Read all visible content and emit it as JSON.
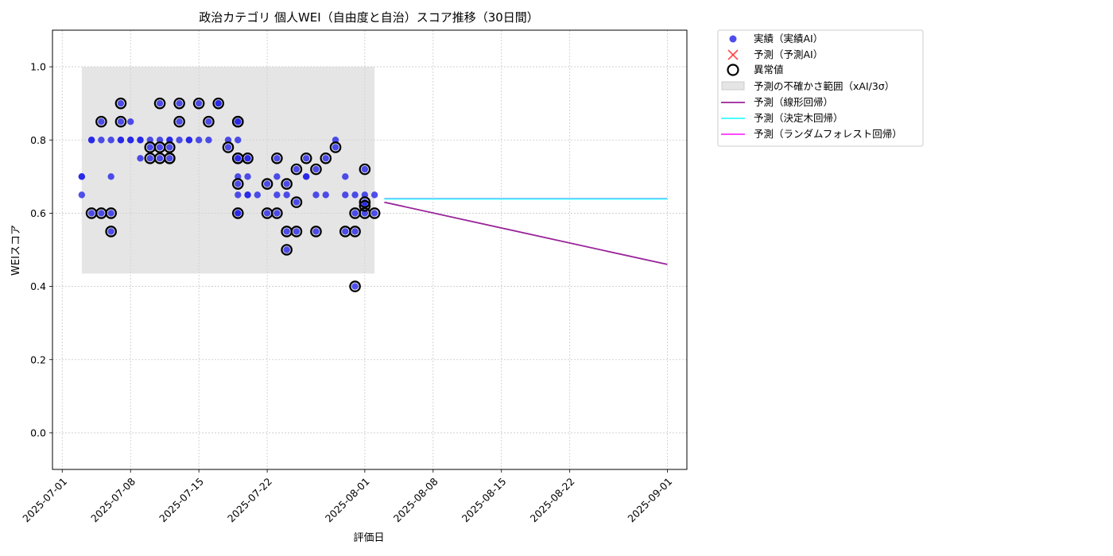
{
  "chart_data": {
    "type": "scatter",
    "title": "政治カテゴリ 個人WEI（自由度と自治）スコア推移（30日間）",
    "xlabel": "評価日",
    "ylabel": "WEIスコア",
    "xlim": [
      "2025-06-30",
      "2025-09-03"
    ],
    "ylim": [
      -0.1,
      1.1
    ],
    "x_ticks": [
      "2025-07-01",
      "2025-07-08",
      "2025-07-15",
      "2025-07-22",
      "2025-08-01",
      "2025-08-08",
      "2025-08-15",
      "2025-08-22",
      "2025-09-01"
    ],
    "y_ticks": [
      "0.0",
      "0.2",
      "0.4",
      "0.6",
      "0.8",
      "1.0"
    ],
    "grid": true,
    "legend_position": "outside upper-right",
    "colors": {
      "actual": "#2020e8",
      "predicted": "#ff3333",
      "anomaly_edge": "#000000",
      "uncertainty_band": "#d3d3d3",
      "linear": "#992299",
      "decision_tree": "#33ffff",
      "random_forest": "#ff33ff"
    },
    "legend": {
      "actual": "実績（実績AI）",
      "predicted": "予測（予測AI）",
      "anomaly": "異常値",
      "band": "予測の不確かさ範囲（xAI/3σ）",
      "linear": "予測（線形回帰）",
      "decision_tree": "予測（決定木回帰）",
      "random_forest": "予測（ランダムフォレスト回帰）"
    },
    "uncertainty_band": {
      "x": [
        "2025-07-03",
        "2025-08-02"
      ],
      "y": [
        0.435,
        1.0
      ]
    },
    "actual": [
      [
        "2025-07-03",
        0.7
      ],
      [
        "2025-07-03",
        0.7
      ],
      [
        "2025-07-03",
        0.65
      ],
      [
        "2025-07-04",
        0.8
      ],
      [
        "2025-07-04",
        0.8
      ],
      [
        "2025-07-04",
        0.6
      ],
      [
        "2025-07-05",
        0.8
      ],
      [
        "2025-07-05",
        0.85
      ],
      [
        "2025-07-05",
        0.6
      ],
      [
        "2025-07-06",
        0.6
      ],
      [
        "2025-07-06",
        0.7
      ],
      [
        "2025-07-06",
        0.55
      ],
      [
        "2025-07-06",
        0.8
      ],
      [
        "2025-07-07",
        0.8
      ],
      [
        "2025-07-07",
        0.9
      ],
      [
        "2025-07-07",
        0.8
      ],
      [
        "2025-07-07",
        0.85
      ],
      [
        "2025-07-08",
        0.8
      ],
      [
        "2025-07-08",
        0.85
      ],
      [
        "2025-07-08",
        0.8
      ],
      [
        "2025-07-09",
        0.8
      ],
      [
        "2025-07-09",
        0.8
      ],
      [
        "2025-07-09",
        0.75
      ],
      [
        "2025-07-10",
        0.8
      ],
      [
        "2025-07-10",
        0.78
      ],
      [
        "2025-07-10",
        0.75
      ],
      [
        "2025-07-11",
        0.8
      ],
      [
        "2025-07-11",
        0.9
      ],
      [
        "2025-07-11",
        0.78
      ],
      [
        "2025-07-11",
        0.75
      ],
      [
        "2025-07-12",
        0.8
      ],
      [
        "2025-07-12",
        0.78
      ],
      [
        "2025-07-12",
        0.75
      ],
      [
        "2025-07-12",
        0.8
      ],
      [
        "2025-07-13",
        0.8
      ],
      [
        "2025-07-13",
        0.9
      ],
      [
        "2025-07-13",
        0.85
      ],
      [
        "2025-07-14",
        0.8
      ],
      [
        "2025-07-14",
        0.8
      ],
      [
        "2025-07-15",
        0.9
      ],
      [
        "2025-07-15",
        0.8
      ],
      [
        "2025-07-16",
        0.85
      ],
      [
        "2025-07-16",
        0.8
      ],
      [
        "2025-07-17",
        0.9
      ],
      [
        "2025-07-17",
        0.9
      ],
      [
        "2025-07-18",
        0.78
      ],
      [
        "2025-07-18",
        0.8
      ],
      [
        "2025-07-19",
        0.85
      ],
      [
        "2025-07-19",
        0.8
      ],
      [
        "2025-07-19",
        0.75
      ],
      [
        "2025-07-19",
        0.85
      ],
      [
        "2025-07-19",
        0.75
      ],
      [
        "2025-07-19",
        0.68
      ],
      [
        "2025-07-19",
        0.6
      ],
      [
        "2025-07-19",
        0.6
      ],
      [
        "2025-07-19",
        0.7
      ],
      [
        "2025-07-19",
        0.65
      ],
      [
        "2025-07-20",
        0.75
      ],
      [
        "2025-07-20",
        0.7
      ],
      [
        "2025-07-20",
        0.75
      ],
      [
        "2025-07-20",
        0.65
      ],
      [
        "2025-07-20",
        0.65
      ],
      [
        "2025-07-21",
        0.65
      ],
      [
        "2025-07-22",
        0.68
      ],
      [
        "2025-07-22",
        0.6
      ],
      [
        "2025-07-23",
        0.75
      ],
      [
        "2025-07-23",
        0.7
      ],
      [
        "2025-07-23",
        0.65
      ],
      [
        "2025-07-23",
        0.6
      ],
      [
        "2025-07-24",
        0.55
      ],
      [
        "2025-07-24",
        0.5
      ],
      [
        "2025-07-24",
        0.68
      ],
      [
        "2025-07-24",
        0.65
      ],
      [
        "2025-07-25",
        0.72
      ],
      [
        "2025-07-25",
        0.63
      ],
      [
        "2025-07-25",
        0.55
      ],
      [
        "2025-07-26",
        0.75
      ],
      [
        "2025-07-26",
        0.7
      ],
      [
        "2025-07-26",
        0.7
      ],
      [
        "2025-07-27",
        0.72
      ],
      [
        "2025-07-27",
        0.65
      ],
      [
        "2025-07-27",
        0.55
      ],
      [
        "2025-07-28",
        0.75
      ],
      [
        "2025-07-28",
        0.65
      ],
      [
        "2025-07-29",
        0.8
      ],
      [
        "2025-07-29",
        0.78
      ],
      [
        "2025-07-30",
        0.7
      ],
      [
        "2025-07-30",
        0.65
      ],
      [
        "2025-07-30",
        0.55
      ],
      [
        "2025-07-31",
        0.65
      ],
      [
        "2025-07-31",
        0.6
      ],
      [
        "2025-07-31",
        0.55
      ],
      [
        "2025-07-31",
        0.4
      ],
      [
        "2025-08-01",
        0.65
      ],
      [
        "2025-08-01",
        0.72
      ],
      [
        "2025-08-01",
        0.63
      ],
      [
        "2025-08-01",
        0.6
      ],
      [
        "2025-08-01",
        0.62
      ],
      [
        "2025-08-02",
        0.65
      ],
      [
        "2025-08-02",
        0.6
      ]
    ],
    "anomalies": [
      [
        "2025-07-04",
        0.6
      ],
      [
        "2025-07-05",
        0.85
      ],
      [
        "2025-07-05",
        0.6
      ],
      [
        "2025-07-06",
        0.6
      ],
      [
        "2025-07-06",
        0.55
      ],
      [
        "2025-07-07",
        0.9
      ],
      [
        "2025-07-07",
        0.85
      ],
      [
        "2025-07-10",
        0.75
      ],
      [
        "2025-07-10",
        0.78
      ],
      [
        "2025-07-11",
        0.75
      ],
      [
        "2025-07-11",
        0.9
      ],
      [
        "2025-07-11",
        0.78
      ],
      [
        "2025-07-12",
        0.75
      ],
      [
        "2025-07-12",
        0.78
      ],
      [
        "2025-07-12",
        0.75
      ],
      [
        "2025-07-13",
        0.9
      ],
      [
        "2025-07-13",
        0.85
      ],
      [
        "2025-07-15",
        0.9
      ],
      [
        "2025-07-16",
        0.85
      ],
      [
        "2025-07-17",
        0.9
      ],
      [
        "2025-07-18",
        0.78
      ],
      [
        "2025-07-19",
        0.85
      ],
      [
        "2025-07-19",
        0.75
      ],
      [
        "2025-07-19",
        0.85
      ],
      [
        "2025-07-19",
        0.75
      ],
      [
        "2025-07-19",
        0.68
      ],
      [
        "2025-07-19",
        0.6
      ],
      [
        "2025-07-20",
        0.75
      ],
      [
        "2025-07-22",
        0.68
      ],
      [
        "2025-07-22",
        0.6
      ],
      [
        "2025-07-23",
        0.75
      ],
      [
        "2025-07-23",
        0.6
      ],
      [
        "2025-07-24",
        0.55
      ],
      [
        "2025-07-24",
        0.5
      ],
      [
        "2025-07-24",
        0.68
      ],
      [
        "2025-07-25",
        0.72
      ],
      [
        "2025-07-25",
        0.63
      ],
      [
        "2025-07-25",
        0.55
      ],
      [
        "2025-07-26",
        0.75
      ],
      [
        "2025-07-27",
        0.72
      ],
      [
        "2025-07-27",
        0.55
      ],
      [
        "2025-07-28",
        0.75
      ],
      [
        "2025-07-29",
        0.78
      ],
      [
        "2025-07-30",
        0.55
      ],
      [
        "2025-07-31",
        0.6
      ],
      [
        "2025-07-31",
        0.55
      ],
      [
        "2025-07-31",
        0.4
      ],
      [
        "2025-08-01",
        0.72
      ],
      [
        "2025-08-01",
        0.63
      ],
      [
        "2025-08-01",
        0.6
      ],
      [
        "2025-08-01",
        0.62
      ],
      [
        "2025-08-02",
        0.6
      ]
    ],
    "prediction_lines": [
      {
        "key": "random_forest",
        "x": [
          "2025-08-03",
          "2025-09-01"
        ],
        "y": [
          0.64,
          0.64
        ]
      },
      {
        "key": "decision_tree",
        "x": [
          "2025-08-03",
          "2025-09-01"
        ],
        "y": [
          0.639,
          0.639
        ]
      },
      {
        "key": "linear",
        "x": [
          "2025-08-03",
          "2025-09-01"
        ],
        "y": [
          0.63,
          0.46
        ]
      }
    ]
  }
}
